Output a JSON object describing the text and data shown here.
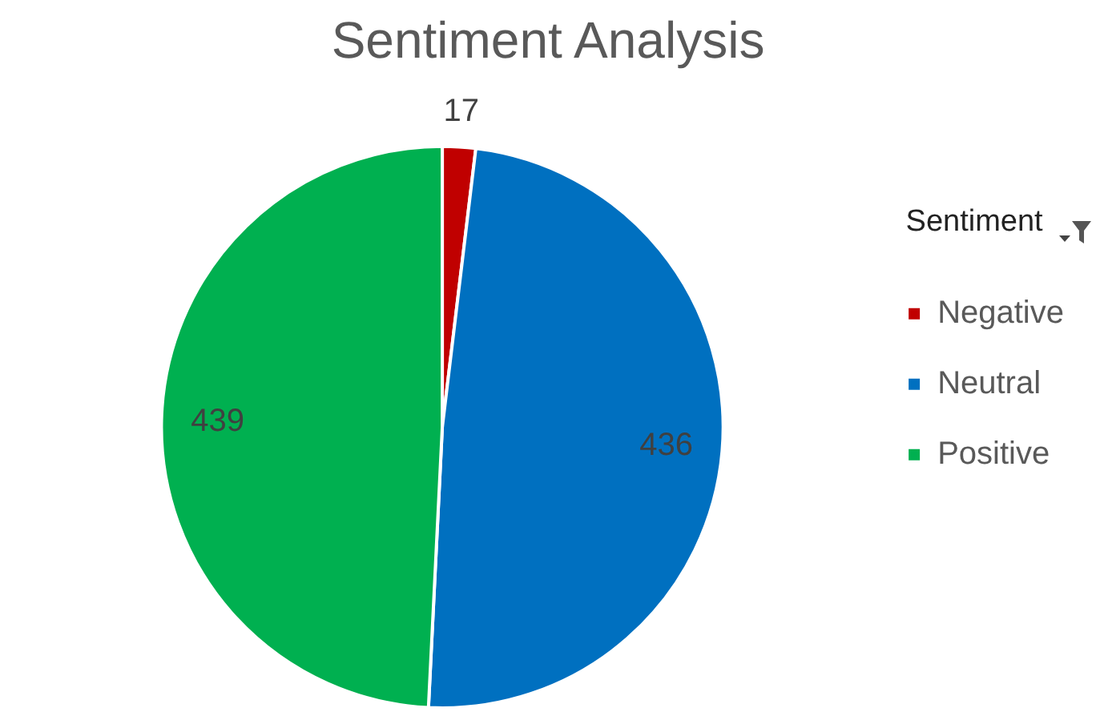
{
  "chart_data": {
    "type": "pie",
    "title": "Sentiment Analysis",
    "legend_title": "Sentiment",
    "legend": "right",
    "data_labels": true,
    "categories": [
      "Negative",
      "Neutral",
      "Positive"
    ],
    "values": [
      17,
      436,
      439
    ],
    "colors": [
      "#c00000",
      "#0070c0",
      "#00b050"
    ]
  }
}
